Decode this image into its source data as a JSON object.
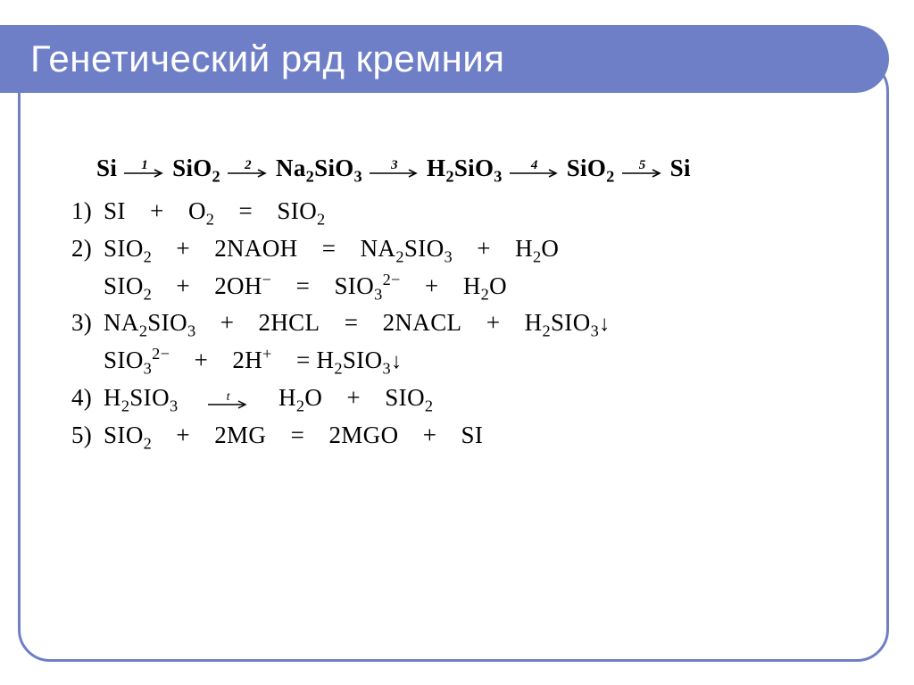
{
  "theme": {
    "accent": "#6e7fc8",
    "background": "#ffffff",
    "text": "#000000",
    "title_fontsize": 42,
    "body_fontsize": 27
  },
  "title": "Генетический ряд кремния",
  "chain": {
    "species": [
      "Si",
      "SiO2",
      "Na2SiO3",
      "H2SiO3",
      "SiO2",
      "Si"
    ],
    "step_labels": [
      "1",
      "2",
      "3",
      "4",
      "5"
    ]
  },
  "equations": {
    "e1": {
      "num": "1)",
      "body_html": "S<span class='sc'>i</span> + O<sub>2</sub> = S<span class='sc'>i</span>O<sub>2</sub>"
    },
    "e2": {
      "num": "2)",
      "body_html": "S<span class='sc'>i</span>O<sub>2</sub> + 2N<span class='sc'>a</span>OH = N<span class='sc'>a</span><sub>2</sub>S<span class='sc'>i</span>O<sub>3</sub> + H<sub>2</sub>O"
    },
    "e2i": "S<span class='sc'>i</span>O<sub>2</sub> + 2OH<sup>−</sup> = S<span class='sc'>i</span>O<sub>3</sub><sup>2−</sup> + H<sub>2</sub>O",
    "e3": {
      "num": "3)",
      "body_html": "N<span class='sc'>a</span><sub>2</sub>S<span class='sc'>i</span>O<sub>3</sub> + 2HC<span class='sc'>l</span> = 2N<span class='sc'>a</span>C<span class='sc'>l</span> + H<sub>2</sub>S<span class='sc'>i</span>O<sub>3</sub><span class='dn'></span>"
    },
    "e3i": "S<span class='sc'>i</span>O<sub>3</sub><sup>2−</sup> + 2H<sup>+</sup> = H<sub>2</sub>S<span class='sc'>i</span>O<sub>3</sub><span class='dn'></span>",
    "e4": {
      "num": "4)",
      "body_html": "H<sub>2</sub>S<span class='sc'>i</span>O<sub>3</sub> <span class='heat'><span class='heat-label'>t</span><svg width='46' height='10'><line x1='0' y1='5' x2='40' y2='5' stroke='#000' stroke-width='1.4'/><polyline points='34,1 42,5 34,9' fill='none' stroke='#000' stroke-width='1.4'/></svg></span> H<sub>2</sub>O + S<span class='sc'>i</span>O<sub>2</sub>"
    },
    "e5": {
      "num": "5)",
      "body_html": "S<span class='sc'>i</span>O<sub>2</sub> + 2M<span class='sc'>g</span> = 2M<span class='sc'>g</span>O + S<span class='sc'>i</span>"
    }
  }
}
